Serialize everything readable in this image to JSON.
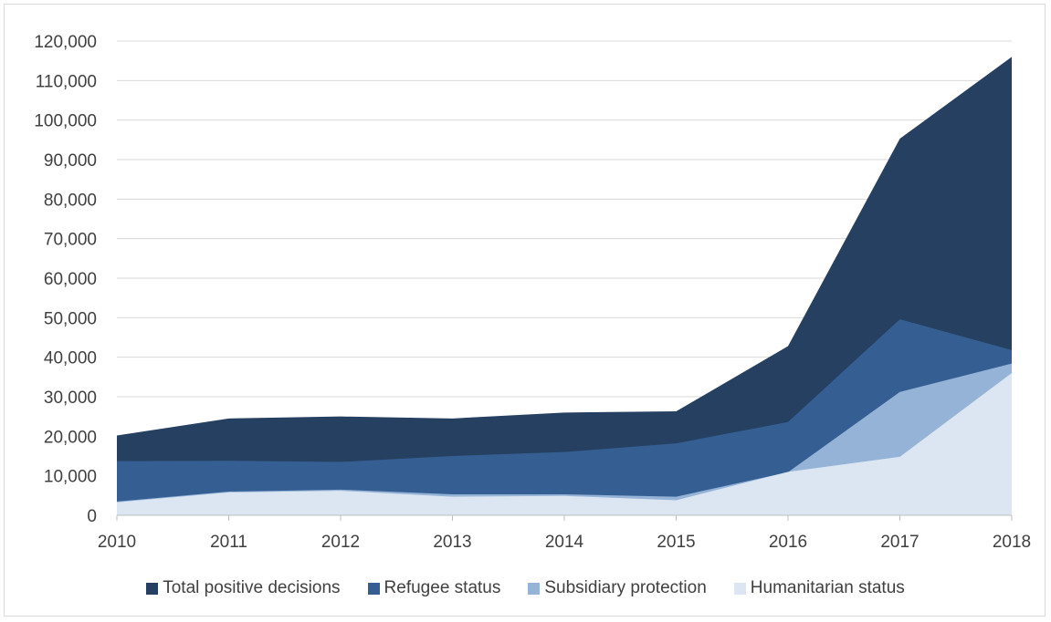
{
  "chart_data": {
    "type": "area",
    "x": [
      "2010",
      "2011",
      "2012",
      "2013",
      "2014",
      "2015",
      "2016",
      "2017",
      "2018"
    ],
    "ylim": [
      0,
      120000
    ],
    "yticks": [
      "0",
      "10,000",
      "20,000",
      "30,000",
      "40,000",
      "50,000",
      "60,000",
      "70,000",
      "80,000",
      "90,000",
      "100,000",
      "110,000",
      "120,000"
    ],
    "grid": true,
    "legend_position": "bottom",
    "series": [
      {
        "name": "Total positive decisions",
        "color": "#264061",
        "values": [
          20200,
          24500,
          25000,
          24500,
          26000,
          26300,
          42800,
          95300,
          116000
        ]
      },
      {
        "name": "Refugee status",
        "color": "#355f92",
        "values": [
          13700,
          13800,
          13500,
          15000,
          16000,
          18200,
          23600,
          49600,
          41800
        ]
      },
      {
        "name": "Subsidiary protection",
        "color": "#95b3d7",
        "values": [
          3500,
          6000,
          6500,
          5300,
          5300,
          4700,
          10900,
          31200,
          38400
        ]
      },
      {
        "name": "Humanitarian status",
        "color": "#dce6f2",
        "values": [
          3300,
          5800,
          6200,
          4700,
          4900,
          3800,
          11000,
          14800,
          36000
        ]
      }
    ]
  }
}
